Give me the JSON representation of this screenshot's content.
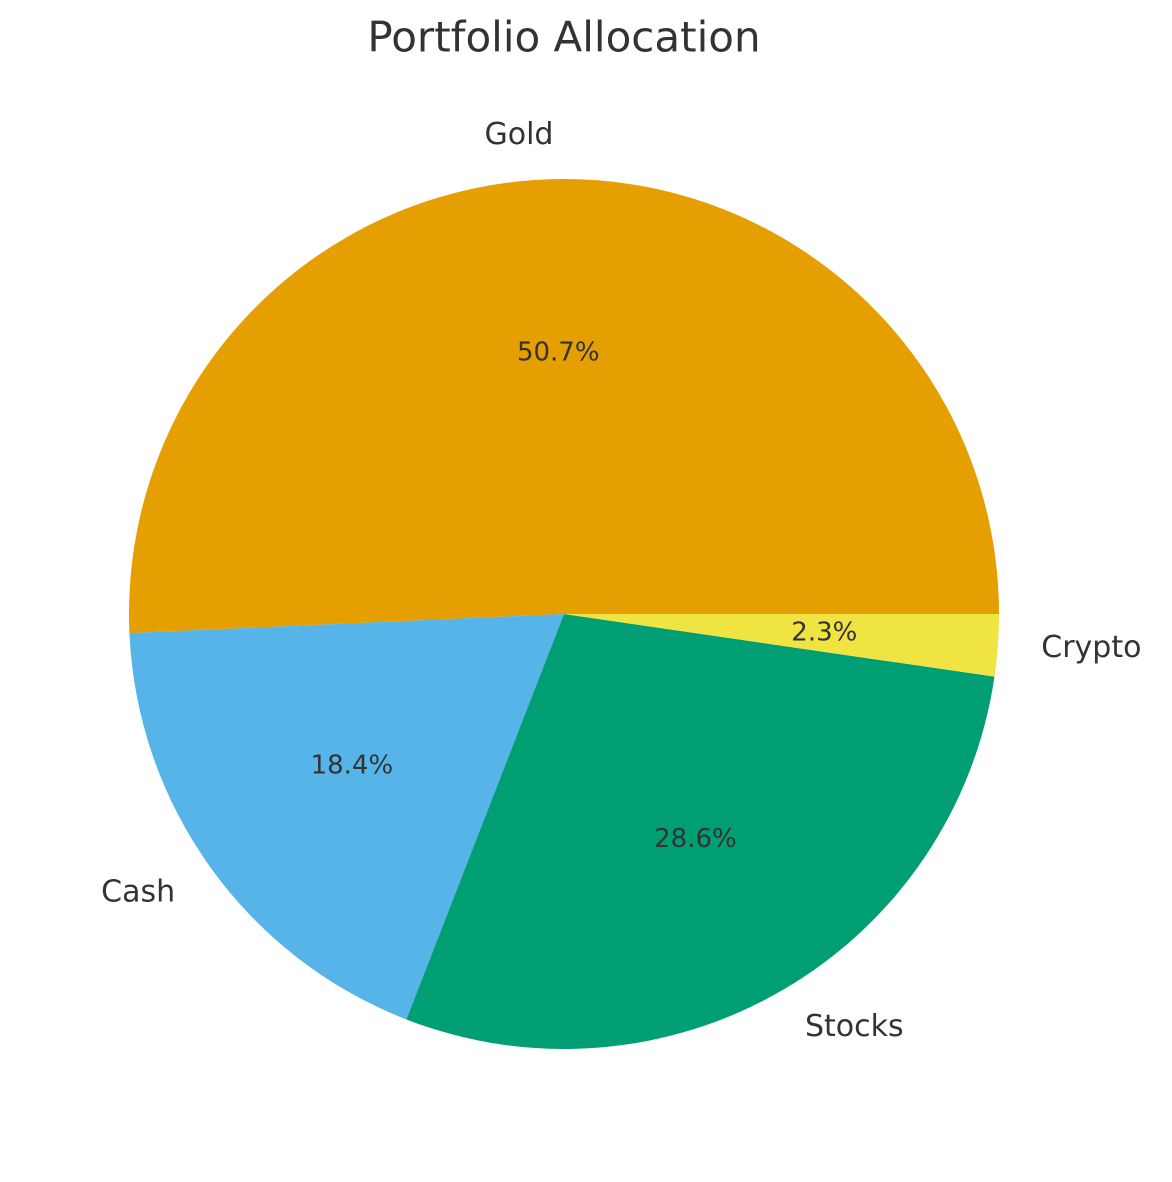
{
  "chart_data": {
    "type": "pie",
    "title": "Portfolio Allocation",
    "categories": [
      "Gold",
      "Cash",
      "Stocks",
      "Crypto"
    ],
    "values": [
      50.7,
      18.4,
      28.6,
      2.3
    ],
    "value_labels": [
      "50.7%",
      "18.4%",
      "28.6%",
      "2.3%"
    ],
    "colors": [
      "#e69f00",
      "#56b4e9",
      "#009e73",
      "#f0e442"
    ]
  }
}
